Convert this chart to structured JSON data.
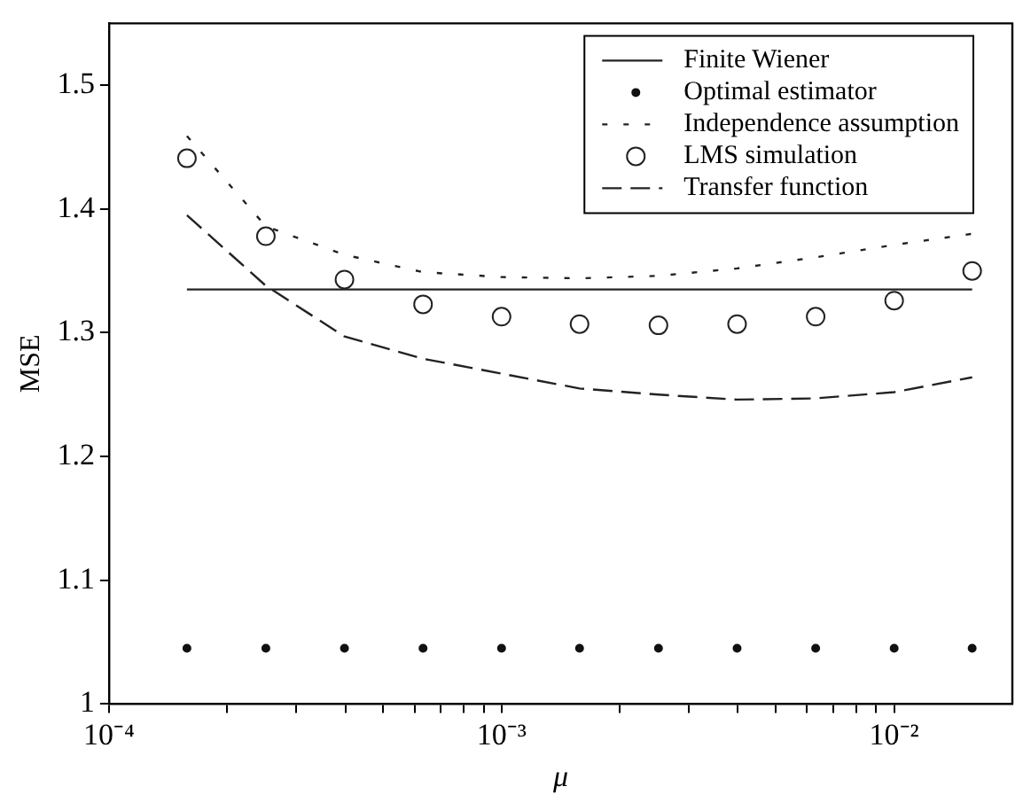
{
  "chart_data": {
    "type": "line",
    "xlabel": "μ",
    "ylabel": "MSE",
    "log": "x",
    "grid": false,
    "legend": "top right",
    "x": [
      0.000158,
      0.000251,
      0.000398,
      0.000631,
      0.001,
      0.00158,
      0.00251,
      0.00398,
      0.00631,
      0.01,
      0.0158
    ],
    "xlim": [
      0.0001,
      0.02
    ],
    "xticks": [
      {
        "value": 0.0001,
        "label": "10⁻⁴"
      },
      {
        "value": 0.0002,
        "label": null
      },
      {
        "value": 0.0003,
        "label": null
      },
      {
        "value": 0.0004,
        "label": null
      },
      {
        "value": 0.0005,
        "label": null
      },
      {
        "value": 0.0006,
        "label": null
      },
      {
        "value": 0.0007,
        "label": null
      },
      {
        "value": 0.0008,
        "label": null
      },
      {
        "value": 0.0009,
        "label": null
      },
      {
        "value": 0.001,
        "label": "10⁻³"
      },
      {
        "value": 0.002,
        "label": null
      },
      {
        "value": 0.003,
        "label": null
      },
      {
        "value": 0.004,
        "label": null
      },
      {
        "value": 0.005,
        "label": null
      },
      {
        "value": 0.006,
        "label": null
      },
      {
        "value": 0.007,
        "label": null
      },
      {
        "value": 0.008,
        "label": null
      },
      {
        "value": 0.009,
        "label": null
      },
      {
        "value": 0.01,
        "label": "10⁻²"
      }
    ],
    "ylim": [
      1,
      1.55
    ],
    "yticks": [
      1,
      1.1,
      1.2,
      1.3,
      1.4,
      1.5
    ],
    "series": [
      {
        "name": "Finite Wiener",
        "line_style": "solid",
        "marker": "none",
        "color": "#222222",
        "values": [
          1.335,
          1.335,
          1.335,
          1.335,
          1.335,
          1.335,
          1.335,
          1.335,
          1.335,
          1.335,
          1.335
        ]
      },
      {
        "name": "Optimal estimator",
        "type": "scatter",
        "marker": "circle",
        "color": "#111111",
        "values": [
          1.045,
          1.045,
          1.045,
          1.045,
          1.045,
          1.045,
          1.045,
          1.045,
          1.045,
          1.045,
          1.045
        ]
      },
      {
        "name": "Independence assumption",
        "line_style": "dotted",
        "marker": "none",
        "color": "#222222",
        "values": [
          1.459,
          1.386,
          1.363,
          1.349,
          1.345,
          1.344,
          1.346,
          1.352,
          1.361,
          1.371,
          1.38
        ]
      },
      {
        "name": "LMS simulation",
        "type": "scatter",
        "marker": "circle",
        "color": "#222222",
        "values": [
          1.441,
          1.378,
          1.343,
          1.323,
          1.313,
          1.307,
          1.306,
          1.307,
          1.313,
          1.326,
          1.35
        ]
      },
      {
        "name": "Transfer function",
        "line_style": "dashed",
        "marker": "none",
        "color": "#222222",
        "values": [
          1.395,
          1.338,
          1.297,
          1.279,
          1.267,
          1.255,
          1.25,
          1.246,
          1.247,
          1.252,
          1.264
        ]
      }
    ]
  }
}
